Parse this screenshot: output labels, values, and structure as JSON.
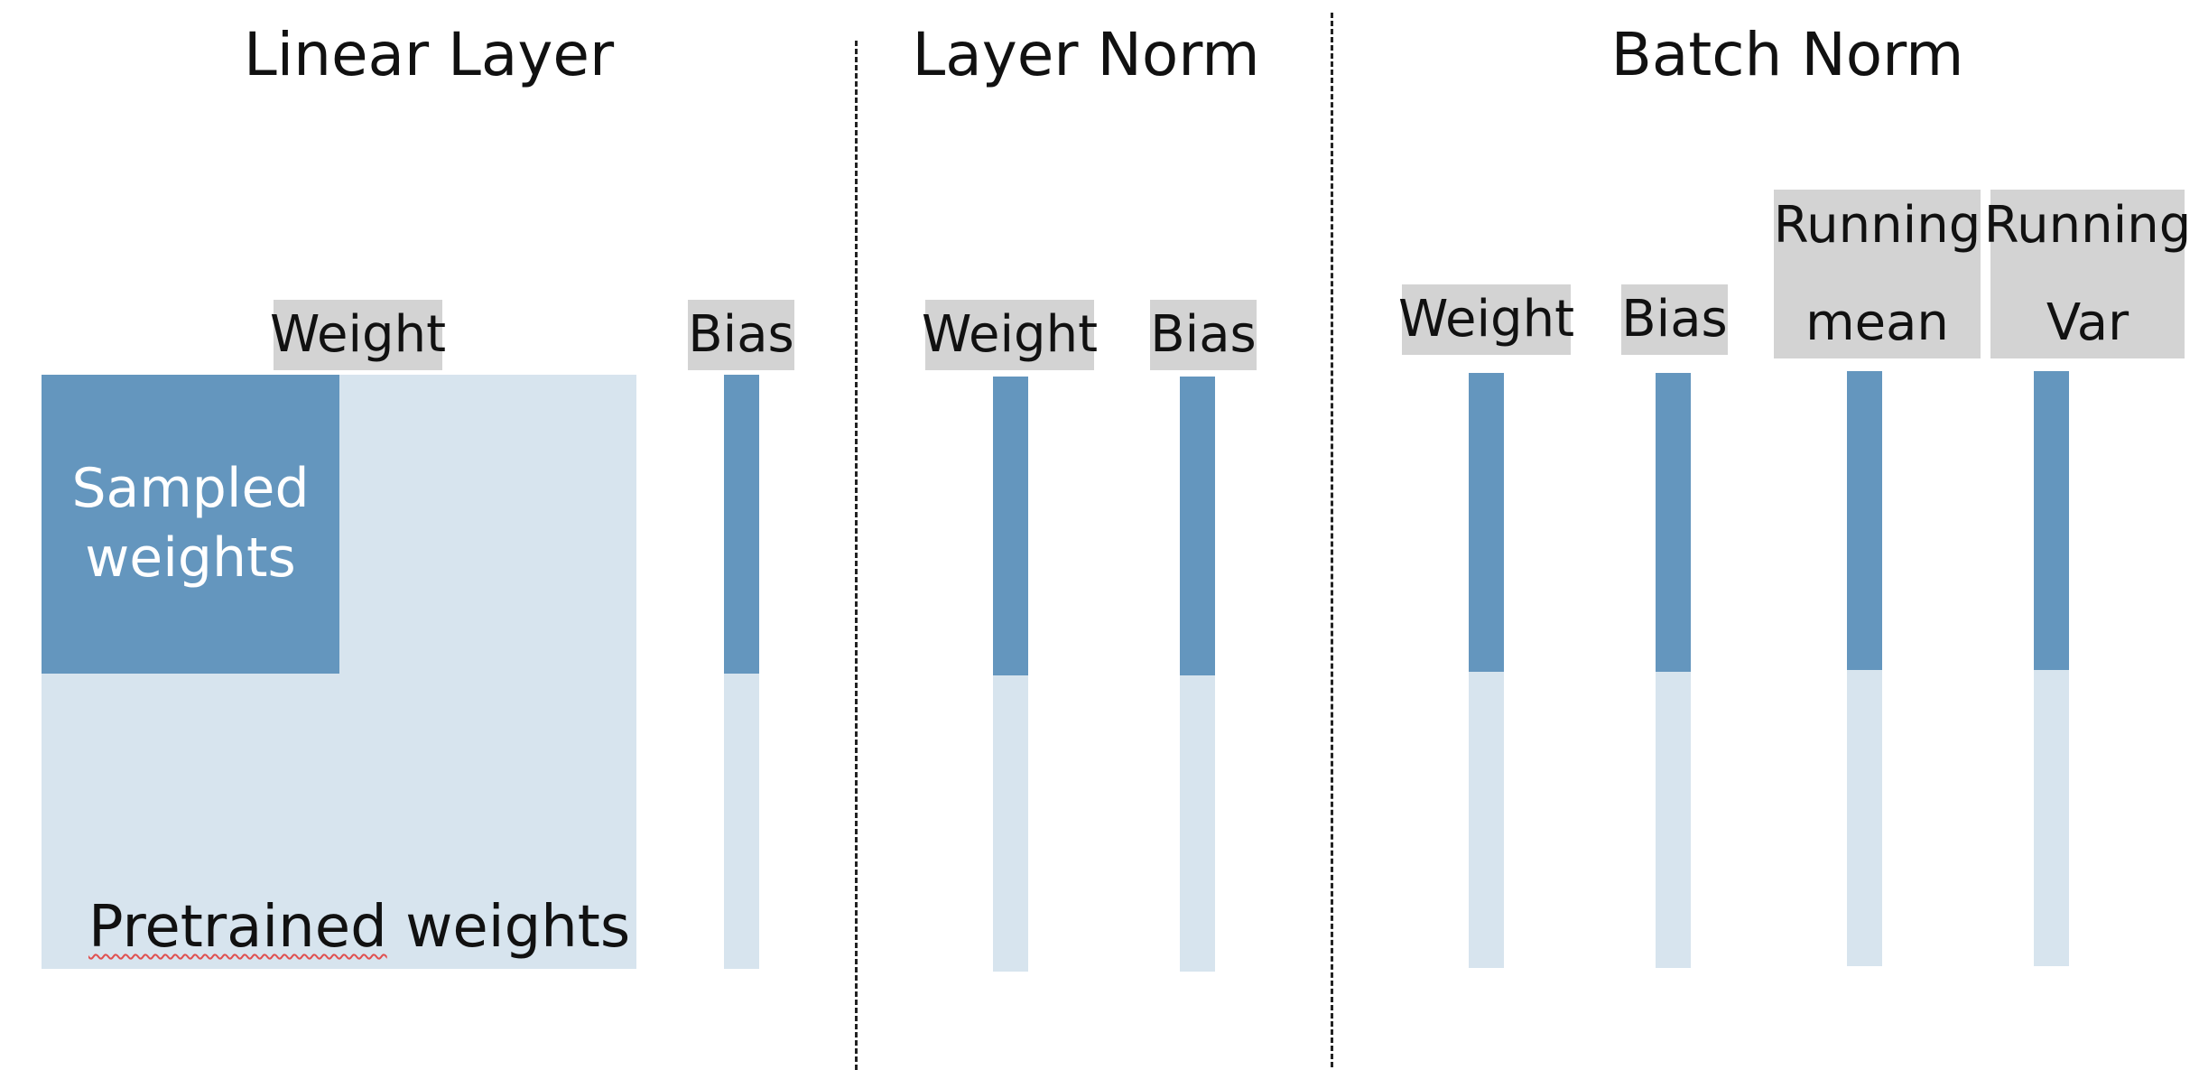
{
  "sections": {
    "linear": {
      "title": "Linear Layer",
      "weight_label": "Weight",
      "bias_label": "Bias",
      "sampled_line1": "Sampled",
      "sampled_line2": "weights",
      "pretrained_word1": "Pretrained",
      "pretrained_word2": " weights"
    },
    "layer_norm": {
      "title": "Layer Norm",
      "weight_label": "Weight",
      "bias_label": "Bias"
    },
    "batch_norm": {
      "title": "Batch Norm",
      "weight_label": "Weight",
      "bias_label": "Bias",
      "running_mean_line1": "Running",
      "running_mean_line2": "mean",
      "running_var_line1": "Running",
      "running_var_line2": "Var"
    }
  },
  "colors": {
    "sampled": "#6496be",
    "pretrained": "#d7e4ee",
    "label_box": "#d3d3d3"
  }
}
